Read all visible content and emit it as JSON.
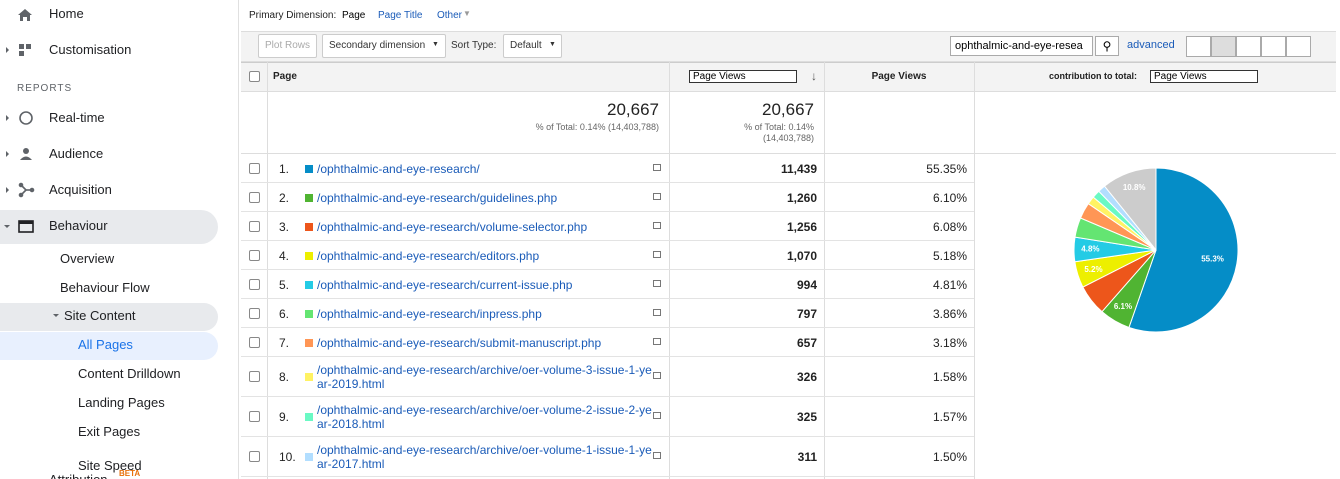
{
  "sidebar": {
    "top": [
      "Home",
      "Customisation"
    ],
    "section": "REPORTS",
    "reports": [
      "Real-time",
      "Audience",
      "Acquisition",
      "Behaviour"
    ],
    "behaviour": [
      "Overview",
      "Behaviour Flow",
      "Site Content"
    ],
    "site_content": [
      "All Pages",
      "Content Drilldown",
      "Landing Pages",
      "Exit Pages",
      "Site Speed"
    ],
    "attribution": {
      "label": "Attribution",
      "badge": "BETA"
    }
  },
  "toolbar": {
    "primary_label": "Primary Dimension:",
    "primary_options": [
      "Page",
      "Page Title",
      "Other"
    ],
    "plot_rows": "Plot Rows",
    "secondary": "Secondary dimension",
    "sort_label": "Sort Type:",
    "sort_value": "Default",
    "search": "ophthalmic-and-eye-resea",
    "advanced": "advanced"
  },
  "table": {
    "columns": {
      "page": "Page",
      "metric_select": "Page Views",
      "metric": "Page Views",
      "contribution": "contribution to total:",
      "contribution_select": "Page Views"
    },
    "totals": [
      {
        "value": "20,667",
        "note": "% of Total: 0.14% (14,403,788)"
      },
      {
        "value": "20,667",
        "note": "% of Total: 0.14% (14,403,788)"
      }
    ],
    "rows": [
      {
        "index": "1.",
        "page": "/ophthalmic-and-eye-research/",
        "views": "11,439",
        "percent": "55.35%"
      },
      {
        "index": "2.",
        "page": "/ophthalmic-and-eye-research/guidelines.php",
        "views": "1,260",
        "percent": "6.10%"
      },
      {
        "index": "3.",
        "page": "/ophthalmic-and-eye-research/volume-selector.php",
        "views": "1,256",
        "percent": "6.08%"
      },
      {
        "index": "4.",
        "page": "/ophthalmic-and-eye-research/editors.php",
        "views": "1,070",
        "percent": "5.18%"
      },
      {
        "index": "5.",
        "page": "/ophthalmic-and-eye-research/current-issue.php",
        "views": "994",
        "percent": "4.81%"
      },
      {
        "index": "6.",
        "page": "/ophthalmic-and-eye-research/inpress.php",
        "views": "797",
        "percent": "3.86%"
      },
      {
        "index": "7.",
        "page": "/ophthalmic-and-eye-research/submit-manuscript.php",
        "views": "657",
        "percent": "3.18%"
      },
      {
        "index": "8.",
        "page": "/ophthalmic-and-eye-research/archive/oer-volume-3-issue-1-year-2019.html",
        "views": "326",
        "percent": "1.58%"
      },
      {
        "index": "9.",
        "page": "/ophthalmic-and-eye-research/archive/oer-volume-2-issue-2-year-2018.html",
        "views": "325",
        "percent": "1.57%"
      },
      {
        "index": "10.",
        "page": "/ophthalmic-and-eye-research/archive/oer-volume-1-issue-1-year-2017.html",
        "views": "311",
        "percent": "1.50%"
      }
    ]
  },
  "pie": {
    "values": [
      55.35,
      6.1,
      6.08,
      5.18,
      4.81,
      3.86,
      3.18,
      1.58,
      1.57,
      1.5,
      10.79
    ],
    "value_labels": [
      "55.3%",
      "6.1%",
      null,
      "5.2%",
      "4.8%",
      null,
      null,
      null,
      null,
      null,
      "10.8%"
    ],
    "colors": [
      "#058dc7",
      "#50b432",
      "#ed561b",
      "#edef00",
      "#24cbe5",
      "#64e572",
      "#ff9655",
      "#fff263",
      "#6af9c4",
      "#b2deff",
      "#cccccc"
    ]
  }
}
